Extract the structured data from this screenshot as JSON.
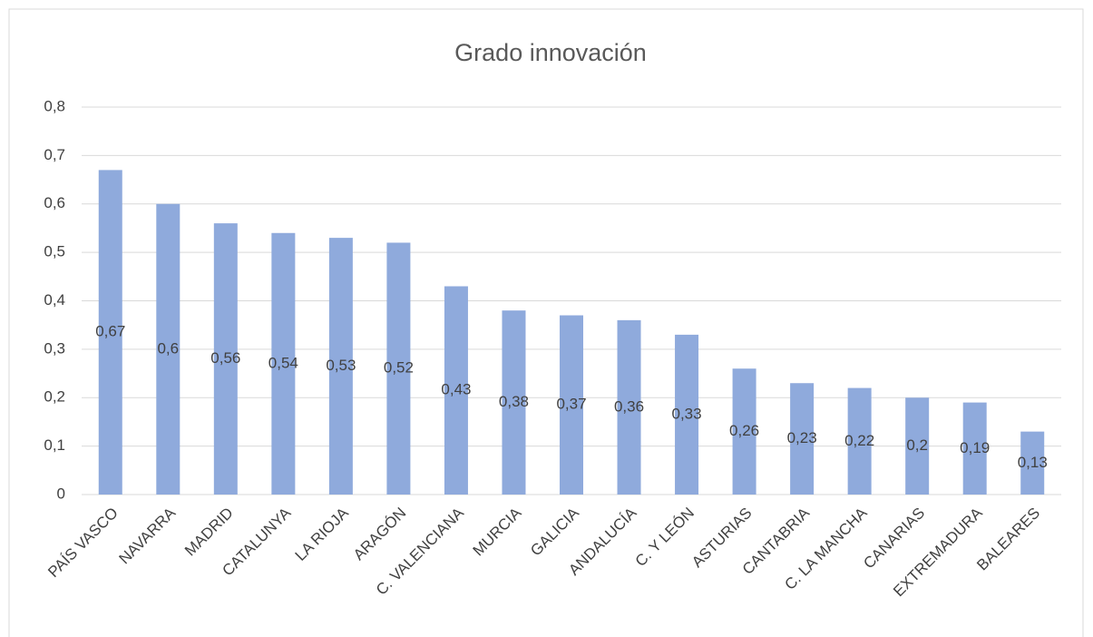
{
  "chart_data": {
    "type": "bar",
    "title": "Grado innovación",
    "categories": [
      "PAÍS VASCO",
      "NAVARRA",
      "MADRID",
      "CATALUNYA",
      "LA RIOJA",
      "ARAGÓN",
      "C. VALENCIANA",
      "MURCIA",
      "GALICIA",
      "ANDALUCÍA",
      "C. Y LEÓN",
      "ASTURIAS",
      "CANTABRIA",
      "C. LA MANCHA",
      "CANARIAS",
      "EXTREMADURA",
      "BALEARES"
    ],
    "values": [
      0.67,
      0.6,
      0.56,
      0.54,
      0.53,
      0.52,
      0.43,
      0.38,
      0.37,
      0.36,
      0.33,
      0.26,
      0.23,
      0.22,
      0.2,
      0.19,
      0.13
    ],
    "value_labels": [
      "0,67",
      "0,6",
      "0,56",
      "0,54",
      "0,53",
      "0,52",
      "0,43",
      "0,38",
      "0,37",
      "0,36",
      "0,33",
      "0,26",
      "0,23",
      "0,22",
      "0,2",
      "0,19",
      "0,13"
    ],
    "color": "#8faadc",
    "ylim": [
      0,
      0.8
    ],
    "yticks": [
      0,
      {
        "value": 0.1,
        "label": "0,1"
      },
      {
        "value": 0.2,
        "label": "0,2"
      },
      {
        "value": 0.3,
        "label": "0,3"
      },
      {
        "value": 0.4,
        "label": "0,4"
      },
      {
        "value": 0.5,
        "label": "0,5"
      },
      {
        "value": 0.6,
        "label": "0,6"
      },
      {
        "value": 0.7,
        "label": "0,7"
      },
      {
        "value": 0.8,
        "label": "0,8"
      }
    ],
    "grid": true
  }
}
